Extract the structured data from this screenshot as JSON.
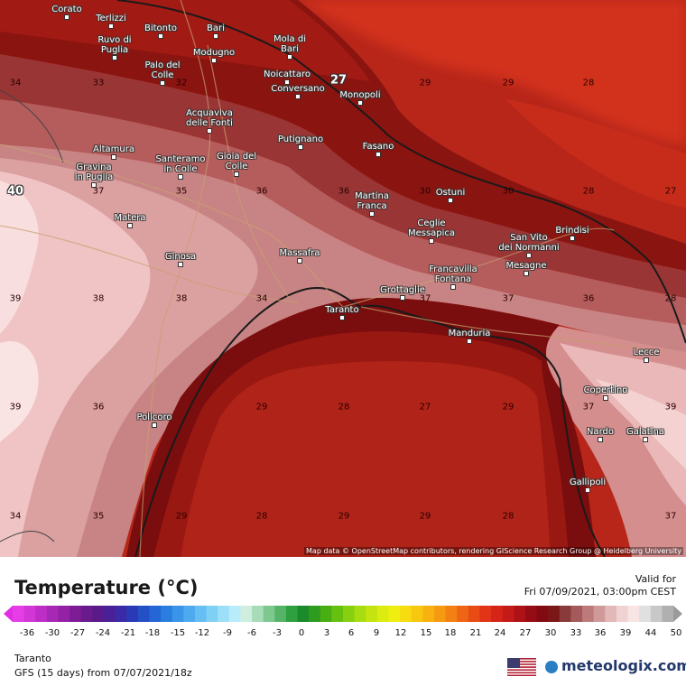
{
  "map": {
    "attribution": "Map data © OpenStreetMap contributors, rendering GIScience Research Group @ Heidelberg University",
    "cities": [
      {
        "name": "Corato"
      },
      {
        "name": "Terlizzi"
      },
      {
        "name": "Bitonto"
      },
      {
        "name": "Bari"
      },
      {
        "name": "Ruvo di\nPuglia"
      },
      {
        "name": "Modugno"
      },
      {
        "name": "Mola di\nBari"
      },
      {
        "name": "Palo del\nColle"
      },
      {
        "name": "Noicattaro"
      },
      {
        "name": "Conversano"
      },
      {
        "name": "Monopoli"
      },
      {
        "name": "Acquaviva\ndelle Fonti"
      },
      {
        "name": "Putignano"
      },
      {
        "name": "Fasano"
      },
      {
        "name": "Altamura"
      },
      {
        "name": "Santeramo\nin Colle"
      },
      {
        "name": "Gioia del\nColle"
      },
      {
        "name": "Gravina\nin Puglia"
      },
      {
        "name": "Martina\nFranca"
      },
      {
        "name": "Ostuni"
      },
      {
        "name": "Matera"
      },
      {
        "name": "Ceglie\nMessapica"
      },
      {
        "name": "San Vito\ndei Normanni"
      },
      {
        "name": "Brindisi"
      },
      {
        "name": "Massafra"
      },
      {
        "name": "Ginosa"
      },
      {
        "name": "Francavilla\nFontana"
      },
      {
        "name": "Mesagne"
      },
      {
        "name": "Grottaglie"
      },
      {
        "name": "Taranto"
      },
      {
        "name": "Manduria"
      },
      {
        "name": "Lecce"
      },
      {
        "name": "Copertino"
      },
      {
        "name": "Policoro"
      },
      {
        "name": "Nardo"
      },
      {
        "name": "Galatina"
      },
      {
        "name": "Gallipoli"
      }
    ],
    "temperature_labels": [
      "34",
      "33",
      "32",
      "27",
      "29",
      "29",
      "28",
      "40",
      "37",
      "35",
      "36",
      "36",
      "30",
      "30",
      "28",
      "27",
      "39",
      "38",
      "38",
      "34",
      "37",
      "37",
      "36",
      "28",
      "39",
      "36",
      "29",
      "28",
      "27",
      "29",
      "37",
      "39",
      "34",
      "35",
      "29",
      "28",
      "29",
      "29",
      "28",
      "37"
    ]
  },
  "footer": {
    "title": "Temperature (°C)",
    "valid_label": "Valid for",
    "valid_date": "Fri 07/09/2021, 03:00pm CEST",
    "location": "Taranto",
    "model_run": "GFS (15 days) from  07/07/2021/18z",
    "logo": "meteologix.com",
    "colorbar_ticks": [
      "-36",
      "-30",
      "-27",
      "-24",
      "-21",
      "-18",
      "-15",
      "-12",
      "-9",
      "-6",
      "-3",
      "0",
      "3",
      "6",
      "9",
      "12",
      "15",
      "18",
      "21",
      "24",
      "27",
      "30",
      "33",
      "36",
      "39",
      "44",
      "50"
    ]
  }
}
